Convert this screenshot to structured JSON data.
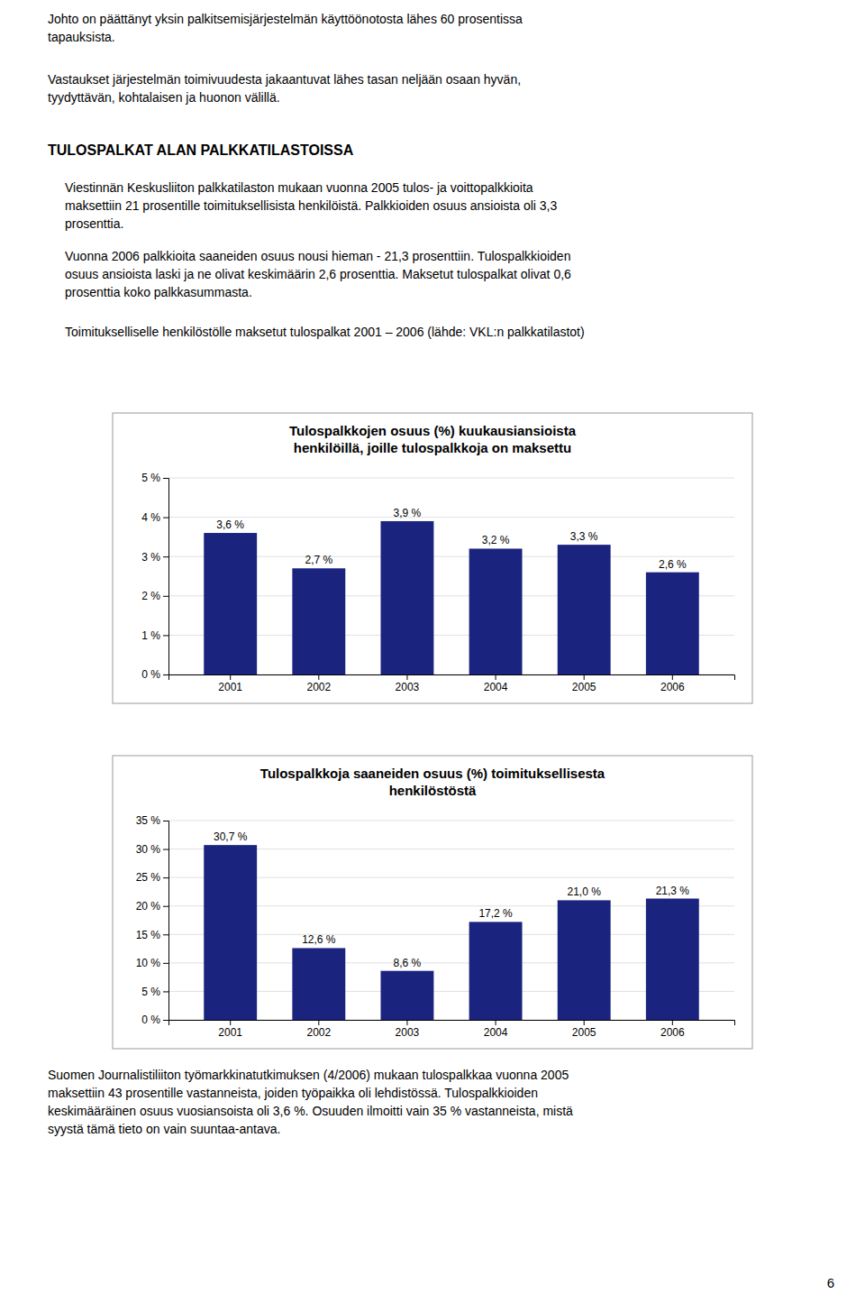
{
  "intro_text1": "Johto on päättänyt yksin palkitsemisjärjestelmän käyttöönotosta lähes 60 prosentissa\ntapauksista.",
  "intro_text2": "Vastaukset järjestelmän toimivuudesta jakaantuvat lähes tasan neljään osaan hyvän,\ntyydyttävän, kohtalaisen ja huonon välillä.",
  "section_title": "TULOSPALKAT ALAN PALKKATILASTOISSA",
  "para1": "Viestinnän Keskusliiton palkkatilaston mukaan vuonna 2005 tulos- ja voittopalkkioita\nmaksettiin 21 prosentille toimituksellisista henkilöistä. Palkkioiden osuus ansioista oli 3,3\nprosenttia.",
  "para2": "Vuonna 2006 palkkioita saaneiden osuus nousi hieman - 21,3 prosenttiin. Tulospalkkioiden\nosuus ansioista laski ja ne olivat keskimäärin 2,6 prosenttia. Maksetut tulospalkat olivat 0,6\nprosenttia koko palkkasummasta.",
  "caption": "Toimitukselliselle henkilöstölle maksetut tulospalkat 2001 – 2006 (lähde: VKL:n palkkatilastot)",
  "footer_text": "Suomen Journalistiliiton työmarkkinatutkimuksen (4/2006) mukaan tulospalkkaa vuonna 2005\nmaksettiin 43 prosentille vastanneista, joiden työpaikka oli lehdistössä. Tulospalkkioiden\nkeskimääräinen osuus vuosiansoista oli 3,6 %. Osuuden ilmoitti vain 35 % vastanneista, mistä\nsyystä tämä tieto on vain suuntaa-antava.",
  "page_number": "6",
  "chart_data": [
    {
      "type": "bar",
      "title": "Tulospalkkojen osuus (%) kuukausiansioista\nhenkilöillä, joille tulospalkkoja on maksettu",
      "categories": [
        "2001",
        "2002",
        "2003",
        "2004",
        "2005",
        "2006"
      ],
      "values": [
        3.6,
        2.7,
        3.9,
        3.2,
        3.3,
        2.6
      ],
      "value_labels": [
        "3,6 %",
        "2,7 %",
        "3,9 %",
        "3,2 %",
        "3,3 %",
        "2,6 %"
      ],
      "data_labels": true,
      "color": "#1a237e",
      "ylim": [
        0,
        5
      ],
      "yticks": [
        {
          "value": 0,
          "label": "0 %"
        },
        {
          "value": 1,
          "label": "1 %"
        },
        {
          "value": 2,
          "label": "2 %"
        },
        {
          "value": 3,
          "label": "3 %"
        },
        {
          "value": 4,
          "label": "4 %"
        },
        {
          "value": 5,
          "label": "5 %"
        }
      ],
      "grid": true
    },
    {
      "type": "bar",
      "title": "Tulospalkkoja saaneiden osuus (%) toimituksellisesta\nhenkilöstöstä",
      "categories": [
        "2001",
        "2002",
        "2003",
        "2004",
        "2005",
        "2006"
      ],
      "values": [
        30.7,
        12.6,
        8.6,
        17.2,
        21.0,
        21.3
      ],
      "value_labels": [
        "30,7 %",
        "12,6 %",
        "8,6 %",
        "17,2 %",
        "21,0 %",
        "21,3 %"
      ],
      "data_labels": true,
      "color": "#1a237e",
      "ylim": [
        0,
        35
      ],
      "yticks": [
        {
          "value": 0,
          "label": "0 %"
        },
        {
          "value": 5,
          "label": "5 %"
        },
        {
          "value": 10,
          "label": "10 %"
        },
        {
          "value": 15,
          "label": "15 %"
        },
        {
          "value": 20,
          "label": "20 %"
        },
        {
          "value": 25,
          "label": "25 %"
        },
        {
          "value": 30,
          "label": "30 %"
        },
        {
          "value": 35,
          "label": "35 %"
        }
      ],
      "grid": true
    }
  ]
}
